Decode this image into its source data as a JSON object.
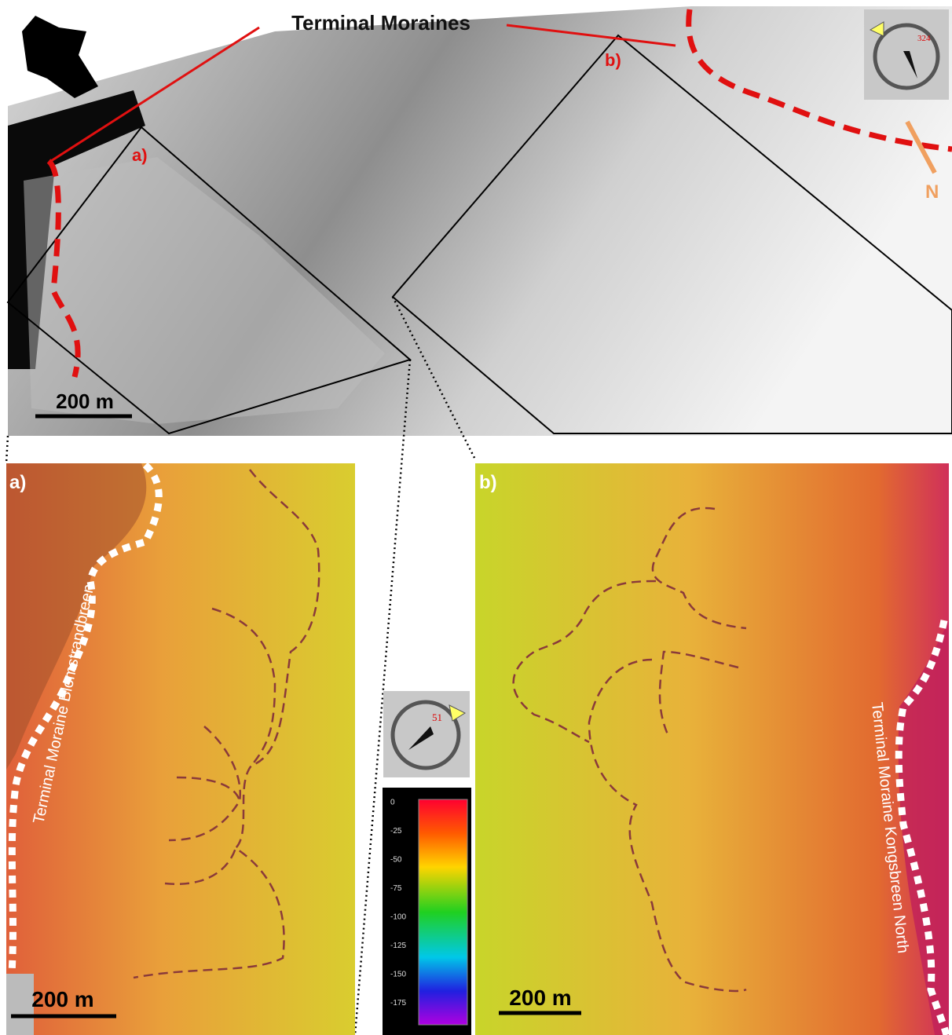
{
  "overview": {
    "label": "Terminal Moraines",
    "marker_a": "a)",
    "marker_b": "b)",
    "north": "N",
    "compass_heading": 324,
    "scale": "200 m"
  },
  "panel_a": {
    "label": "a)",
    "moraine": "Terminal Moraine Blomstrandbreen",
    "scale": "200 m"
  },
  "panel_b": {
    "label": "b)",
    "moraine": "Terminal Moraine Kongsbreen North",
    "scale": "200 m"
  },
  "legend": {
    "compass_heading": 51,
    "depth_ticks": [
      0,
      -25,
      -50,
      -75,
      -100,
      -125,
      -150,
      -175
    ]
  }
}
